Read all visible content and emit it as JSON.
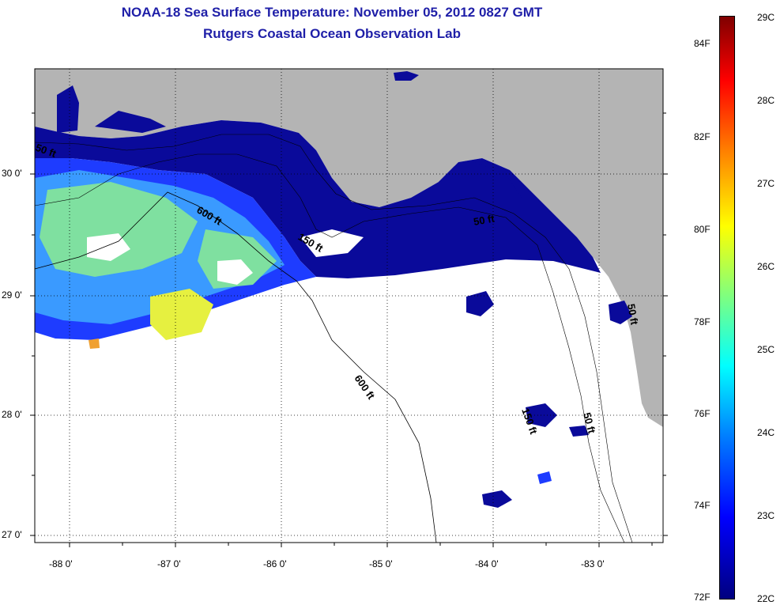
{
  "title": {
    "line1": "NOAA-18 Sea Surface Temperature:  November 05, 2012 0827 GMT",
    "line2": "Rutgers Coastal Ocean Observation Lab"
  },
  "axes": {
    "x_ticks": [
      "-88 0'",
      "-87 0'",
      "-86 0'",
      "-85 0'",
      "-84 0'",
      "-83 0'"
    ],
    "y_ticks": [
      "30 0'",
      "29 0'",
      "28 0'",
      "27 0'"
    ]
  },
  "contours": {
    "label_50_west": "50 ft",
    "label_600_upper": "600 ft",
    "label_150_mid": "150 ft",
    "label_50_east": "50 ft",
    "label_600_lower": "600 ft",
    "label_150_south": "150 ft",
    "label_50_south": "50 ft",
    "label_50_coast": "50 ft"
  },
  "colorbar": {
    "celsius": [
      "29C",
      "28C",
      "27C",
      "26C",
      "25C",
      "24C",
      "23C",
      "22C"
    ],
    "fahrenheit": [
      "84F",
      "82F",
      "80F",
      "78F",
      "76F",
      "74F",
      "72F"
    ]
  },
  "colors": {
    "land": "#b4b4b4",
    "no_data": "#ffffff",
    "water_cold": "#0a0a9a",
    "water_cool": "#1e3cff",
    "water_mid": "#3a9aff",
    "water_warm": "#7fe0a0",
    "water_hot": "#e6f040",
    "title": "#1f1fa8"
  }
}
